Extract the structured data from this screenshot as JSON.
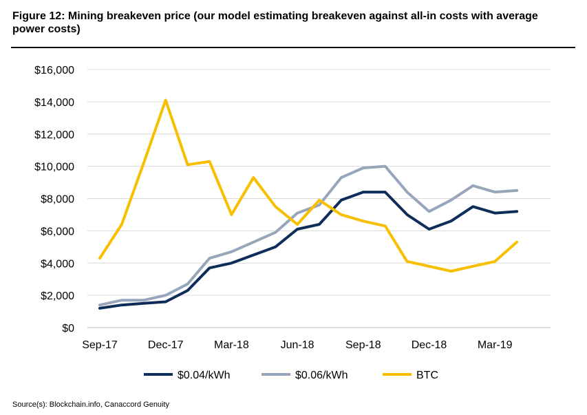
{
  "figure": {
    "title": "Figure 12: Mining breakeven price (our model estimating breakeven against all-in costs with average power costs)",
    "source": "Source(s): Blockchain.info, Canaccord Genuity"
  },
  "chart_data": {
    "type": "line",
    "x": [
      "Sep-17",
      "Oct-17",
      "Nov-17",
      "Dec-17",
      "Jan-18",
      "Feb-18",
      "Mar-18",
      "Apr-18",
      "May-18",
      "Jun-18",
      "Jul-18",
      "Aug-18",
      "Sep-18",
      "Oct-18",
      "Nov-18",
      "Dec-18",
      "Jan-19",
      "Feb-19",
      "Mar-19",
      "Apr-19"
    ],
    "x_tick_labels": [
      "Sep-17",
      "Dec-17",
      "Mar-18",
      "Jun-18",
      "Sep-18",
      "Dec-18",
      "Mar-19"
    ],
    "x_tick_indices": [
      0,
      3,
      6,
      9,
      12,
      15,
      18
    ],
    "ylim": [
      0,
      16000
    ],
    "y_ticks": [
      0,
      2000,
      4000,
      6000,
      8000,
      10000,
      12000,
      14000,
      16000
    ],
    "y_tick_labels": [
      "$0",
      "$2,000",
      "$4,000",
      "$6,000",
      "$8,000",
      "$10,000",
      "$12,000",
      "$14,000",
      "$16,000"
    ],
    "grid": "horizontal",
    "legend_position": "bottom",
    "series": [
      {
        "name": "$0.04/kWh",
        "color": "#0f2d5a",
        "values": [
          1200,
          1400,
          1500,
          1600,
          2300,
          3700,
          4000,
          4500,
          5000,
          6100,
          6400,
          7900,
          8400,
          8400,
          7000,
          6100,
          6600,
          7500,
          7100,
          7200
        ]
      },
      {
        "name": "$0.06/kWh",
        "color": "#98a6bb",
        "values": [
          1400,
          1700,
          1700,
          2000,
          2700,
          4300,
          4700,
          5300,
          5900,
          7100,
          7600,
          9300,
          9900,
          10000,
          8400,
          7200,
          7900,
          8800,
          8400,
          8500
        ]
      },
      {
        "name": "BTC",
        "color": "#f7bf00",
        "values": [
          4300,
          6400,
          10200,
          14100,
          10100,
          10300,
          7000,
          9300,
          7500,
          6400,
          7900,
          7000,
          6600,
          6300,
          4100,
          3800,
          3500,
          3800,
          4100,
          5300
        ]
      }
    ]
  }
}
